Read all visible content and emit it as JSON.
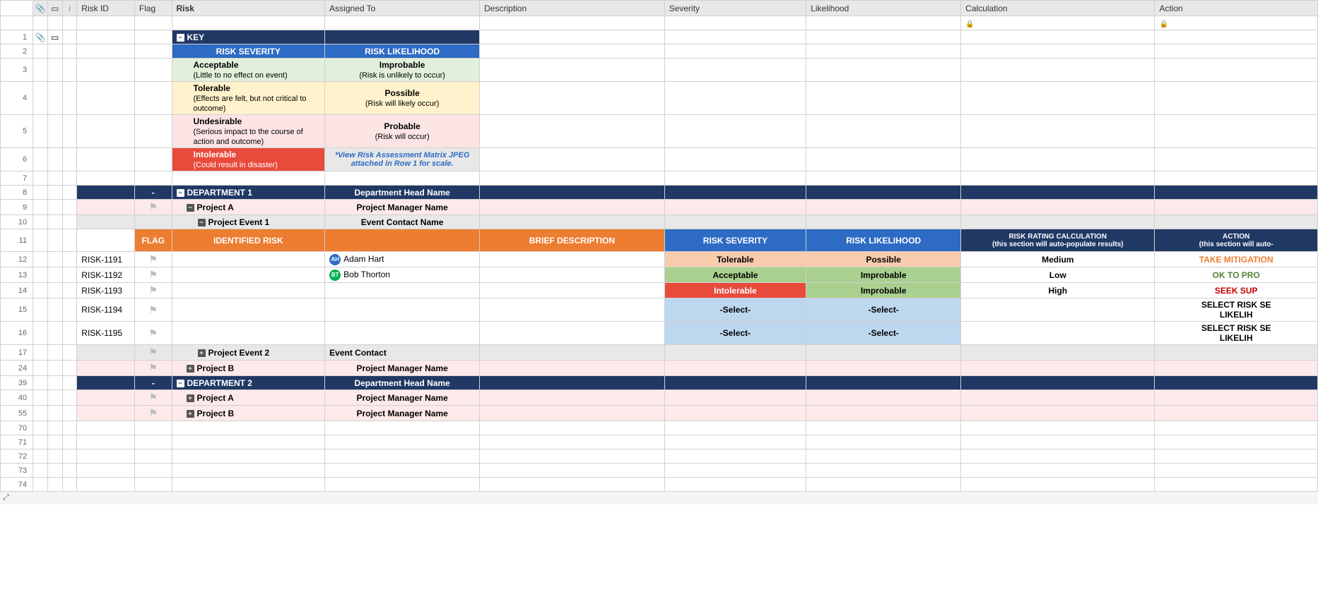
{
  "columns": {
    "riskid": "Risk ID",
    "flag": "Flag",
    "risk": "Risk",
    "assigned": "Assigned To",
    "description": "Description",
    "severity": "Severity",
    "likelihood": "Likelihood",
    "calculation": "Calculation",
    "action": "Action"
  },
  "attach_icon": "📎",
  "comment_icon": "💬",
  "info_icon": "i",
  "lock_icon": "🔒",
  "key": {
    "title": "KEY",
    "sev_hdr": "RISK SEVERITY",
    "like_hdr": "RISK LIKELIHOOD",
    "rows": [
      {
        "sev_t": "Acceptable",
        "sev_s": "(Little to no effect on event)",
        "like_t": "Improbable",
        "like_s": "(Risk is unlikely to occur)",
        "sev_cls": "green-lt",
        "like_cls": "green-lt"
      },
      {
        "sev_t": "Tolerable",
        "sev_s": "(Effects are felt, but not critical to outcome)",
        "like_t": "Possible",
        "like_s": "(Risk will likely occur)",
        "sev_cls": "cream",
        "like_cls": "cream"
      },
      {
        "sev_t": "Undesirable",
        "sev_s": "(Serious impact to the course of action and outcome)",
        "like_t": "Probable",
        "like_s": "(Risk will occur)",
        "sev_cls": "pink-lt",
        "like_cls": "pink-lt"
      },
      {
        "sev_t": "Intolerable",
        "sev_s": "(Could result in disaster)",
        "like_t": "",
        "like_s": "*View Risk Assessment Matrix JPEG attached in Row 1 for scale.",
        "sev_cls": "red",
        "like_cls": "gray-lt italic-blue"
      }
    ]
  },
  "dept1": {
    "dash": "-",
    "title": "DEPARTMENT 1",
    "head": "Department Head Name",
    "projA": {
      "title": "Project A",
      "mgr": "Project Manager Name"
    },
    "event1": {
      "title": "Project Event 1",
      "contact": "Event Contact Name"
    },
    "event2": {
      "title": "Project Event 2",
      "contact": "Event Contact"
    },
    "projB": {
      "title": "Project B",
      "mgr": "Project Manager Name"
    }
  },
  "dept2": {
    "dash": "-",
    "title": "DEPARTMENT 2",
    "head": "Department Head Name",
    "projA": {
      "title": "Project A",
      "mgr": "Project Manager Name"
    },
    "projB": {
      "title": "Project B",
      "mgr": "Project Manager Name"
    }
  },
  "section_hdr": {
    "flag": "FLAG",
    "risk": "IDENTIFIED RISK",
    "desc": "BRIEF DESCRIPTION",
    "sev": "RISK SEVERITY",
    "like": "RISK LIKELIHOOD",
    "calc_l1": "RISK RATING CALCULATION",
    "calc_l2": "(this section will auto-populate results)",
    "action_l1": "ACTION",
    "action_l2": "(this section will auto-"
  },
  "risks": [
    {
      "num": "12",
      "id": "RISK-1191",
      "person": "Adam Hart",
      "initials": "AH",
      "avatar_bg": "#2e6bc4",
      "sev": "Tolerable",
      "sev_cls": "tan-cell",
      "like": "Possible",
      "like_cls": "tan-cell",
      "calc": "Medium",
      "action": "TAKE MITIGATION",
      "action_cls": "action-orange"
    },
    {
      "num": "13",
      "id": "RISK-1192",
      "person": "Bob Thorton",
      "initials": "BT",
      "avatar_bg": "#00b050",
      "sev": "Acceptable",
      "sev_cls": "green-cell",
      "like": "Improbable",
      "like_cls": "green-cell",
      "calc": "Low",
      "action": "OK TO PRO",
      "action_cls": "action-green"
    },
    {
      "num": "14",
      "id": "RISK-1193",
      "person": "",
      "initials": "",
      "avatar_bg": "",
      "sev": "Intolerable",
      "sev_cls": "red-cell",
      "like": "Improbable",
      "like_cls": "green-cell",
      "calc": "High",
      "action": "SEEK SUP",
      "action_cls": "action-red"
    },
    {
      "num": "15",
      "id": "RISK-1194",
      "person": "",
      "initials": "",
      "avatar_bg": "",
      "sev": "-Select-",
      "sev_cls": "blue-lt",
      "like": "-Select-",
      "like_cls": "blue-lt",
      "calc": "",
      "action": "SELECT RISK SE LIKELIH",
      "action_cls": "action-black",
      "tall": true
    },
    {
      "num": "16",
      "id": "RISK-1195",
      "person": "",
      "initials": "",
      "avatar_bg": "",
      "sev": "-Select-",
      "sev_cls": "blue-lt",
      "like": "-Select-",
      "like_cls": "blue-lt",
      "calc": "",
      "action": "SELECT RISK SE LIKELIH",
      "action_cls": "action-black",
      "tall": true
    }
  ],
  "row_nums_key": [
    "1",
    "2",
    "3",
    "4",
    "5",
    "6",
    "7"
  ],
  "extra_rows": [
    "70",
    "71",
    "72",
    "73",
    "74"
  ],
  "expand_icon": "⤢"
}
